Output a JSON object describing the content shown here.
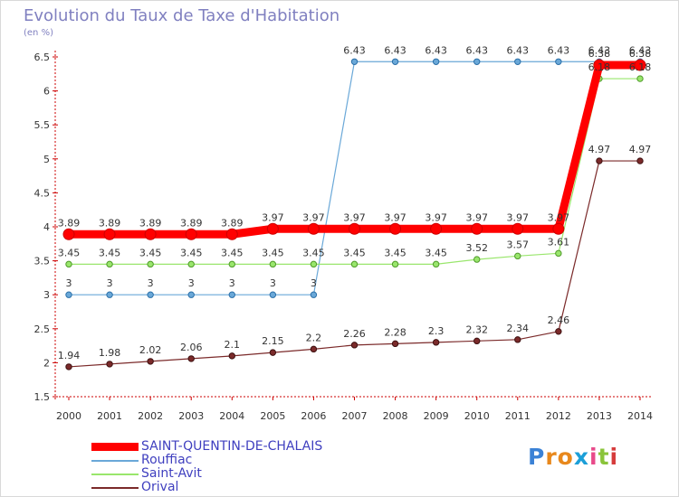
{
  "title": "Evolution du Taux de Taxe d'Habitation",
  "unit_label": "(en %)",
  "logo_text": "Proxiti",
  "chart_data": {
    "type": "line",
    "title": "Evolution du Taux de Taxe d'Habitation",
    "ylabel": "(en %)",
    "xlabel": "",
    "x": [
      "2000",
      "2001",
      "2002",
      "2003",
      "2004",
      "2005",
      "2006",
      "2007",
      "2008",
      "2009",
      "2010",
      "2011",
      "2012",
      "2013",
      "2014"
    ],
    "ylim": [
      1.5,
      6.5
    ],
    "yticks": [
      1.5,
      2,
      2.5,
      3,
      3.5,
      4,
      4.5,
      5,
      5.5,
      6,
      6.5
    ],
    "grid": false,
    "legend_position": "bottom-left",
    "series": [
      {
        "name": "SAINT-QUENTIN-DE-CHALAIS",
        "color": "#ff0000",
        "values": [
          3.89,
          3.89,
          3.89,
          3.89,
          3.89,
          3.97,
          3.97,
          3.97,
          3.97,
          3.97,
          3.97,
          3.97,
          3.97,
          6.38,
          6.38
        ],
        "labels": [
          "3.89",
          "3.89",
          "3.89",
          "3.89",
          "3.89",
          "3.97",
          "3.97",
          "3.97",
          "3.97",
          "3.97",
          "3.97",
          "3.97",
          "3.97",
          "6.38",
          "6.38"
        ]
      },
      {
        "name": "Rouffiac",
        "color": "#6aa8d8",
        "values": [
          3,
          3,
          3,
          3,
          3,
          3,
          3,
          6.43,
          6.43,
          6.43,
          6.43,
          6.43,
          6.43,
          6.43,
          6.43
        ],
        "labels": [
          "3",
          "3",
          "3",
          "3",
          "3",
          "3",
          "3",
          "6.43",
          "6.43",
          "6.43",
          "6.43",
          "6.43",
          "6.43",
          "6.43",
          "6.43"
        ]
      },
      {
        "name": "Saint-Avit",
        "color": "#99e66c",
        "values": [
          3.45,
          3.45,
          3.45,
          3.45,
          3.45,
          3.45,
          3.45,
          3.45,
          3.45,
          3.45,
          3.52,
          3.57,
          3.61,
          6.18,
          6.18
        ],
        "labels": [
          "3.45",
          "3.45",
          "3.45",
          "3.45",
          "3.45",
          "3.45",
          "3.45",
          "3.45",
          "3.45",
          "3.45",
          "3.52",
          "3.57",
          "3.61",
          "6.18",
          "6.18"
        ]
      },
      {
        "name": "Orival",
        "color": "#7b2a2a",
        "values": [
          1.94,
          1.98,
          2.02,
          2.06,
          2.1,
          2.15,
          2.2,
          2.26,
          2.28,
          2.3,
          2.32,
          2.34,
          2.46,
          4.97,
          4.97
        ],
        "labels": [
          "1.94",
          "1.98",
          "2.02",
          "2.06",
          "2.1",
          "2.15",
          "2.2",
          "2.26",
          "2.28",
          "2.3",
          "2.32",
          "2.34",
          "2.46",
          "4.97",
          "4.97"
        ]
      }
    ]
  }
}
